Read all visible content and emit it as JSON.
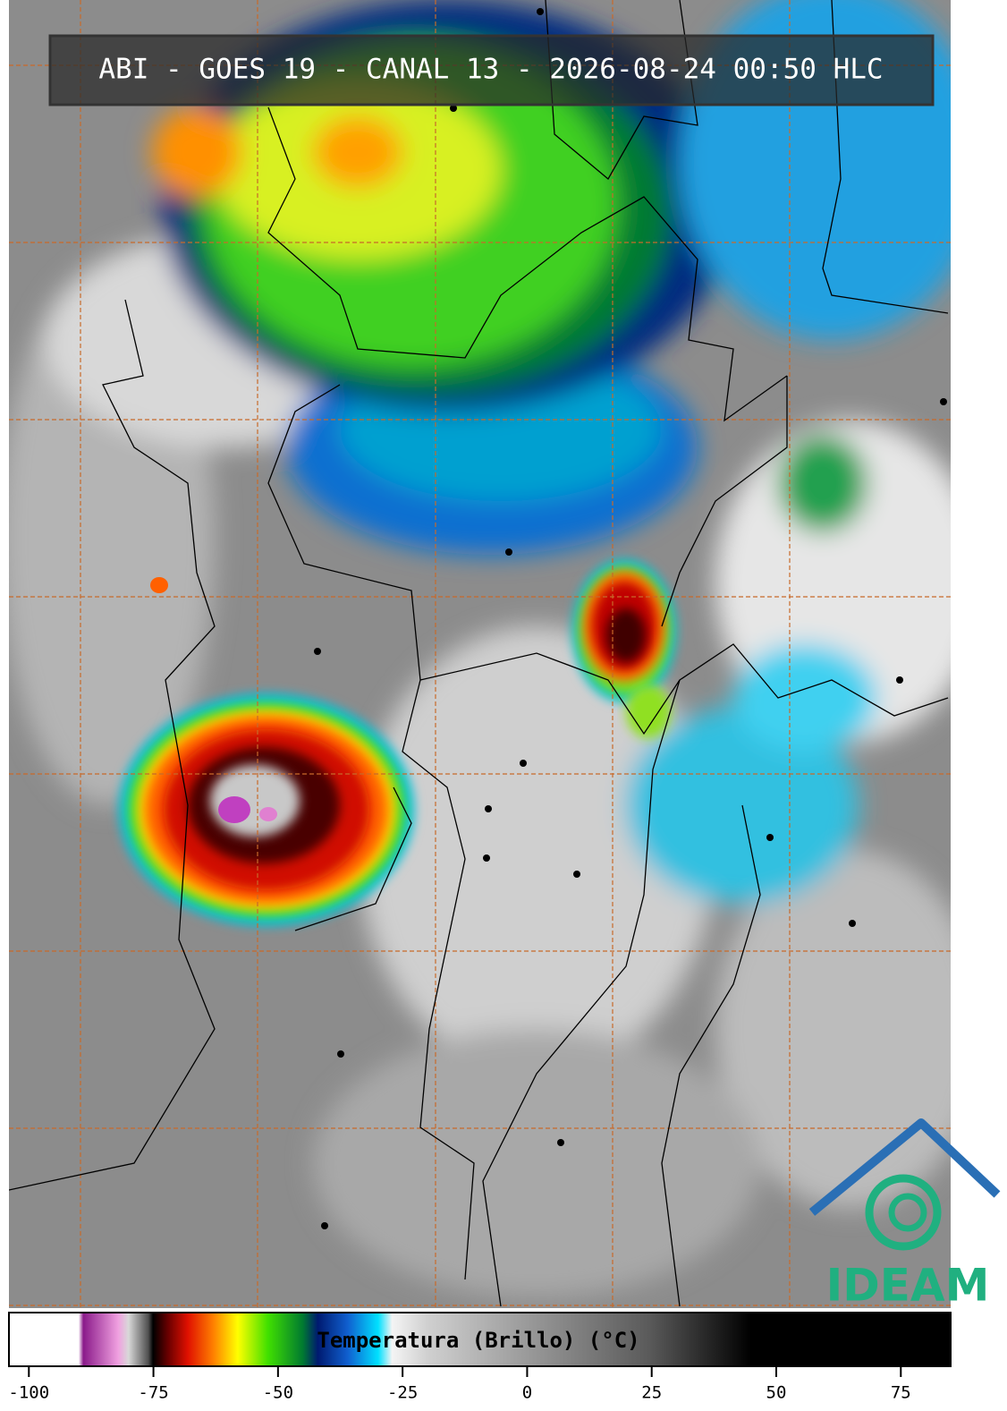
{
  "title": "ABI - GOES 19 - CANAL 13 - 2026-08-24 00:50 HLC",
  "logo": "IDEAM",
  "colorbar": {
    "label": "Temperatura (Brillo) (°C)",
    "range": [
      -104,
      85
    ],
    "ticks": [
      -100,
      -75,
      -50,
      -25,
      0,
      25,
      50,
      75
    ]
  }
}
